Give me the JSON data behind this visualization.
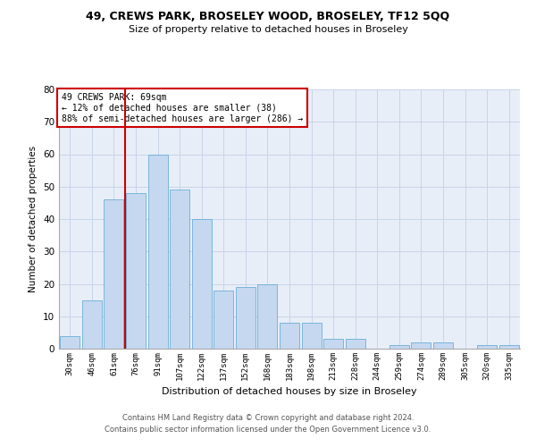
{
  "title1": "49, CREWS PARK, BROSELEY WOOD, BROSELEY, TF12 5QQ",
  "title2": "Size of property relative to detached houses in Broseley",
  "xlabel": "Distribution of detached houses by size in Broseley",
  "ylabel": "Number of detached properties",
  "categories": [
    "30sqm",
    "46sqm",
    "61sqm",
    "76sqm",
    "91sqm",
    "107sqm",
    "122sqm",
    "137sqm",
    "152sqm",
    "168sqm",
    "183sqm",
    "198sqm",
    "213sqm",
    "228sqm",
    "244sqm",
    "259sqm",
    "274sqm",
    "289sqm",
    "305sqm",
    "320sqm",
    "335sqm"
  ],
  "values": [
    4,
    15,
    46,
    48,
    60,
    49,
    40,
    18,
    19,
    20,
    8,
    8,
    3,
    3,
    0,
    1,
    2,
    2,
    0,
    1,
    1
  ],
  "bar_color": "#c5d8f0",
  "bar_edge_color": "#6baed6",
  "vline_x": 2.5,
  "vline_color": "#cc0000",
  "annotation_box_edge_color": "#cc0000",
  "annotation_text_line1": "49 CREWS PARK: 69sqm",
  "annotation_text_line2": "← 12% of detached houses are smaller (38)",
  "annotation_text_line3": "88% of semi-detached houses are larger (286) →",
  "grid_color": "#c8d4e8",
  "bg_color": "#e8eef8",
  "ylim": [
    0,
    80
  ],
  "yticks": [
    0,
    10,
    20,
    30,
    40,
    50,
    60,
    70,
    80
  ],
  "footer1": "Contains HM Land Registry data © Crown copyright and database right 2024.",
  "footer2": "Contains public sector information licensed under the Open Government Licence v3.0."
}
